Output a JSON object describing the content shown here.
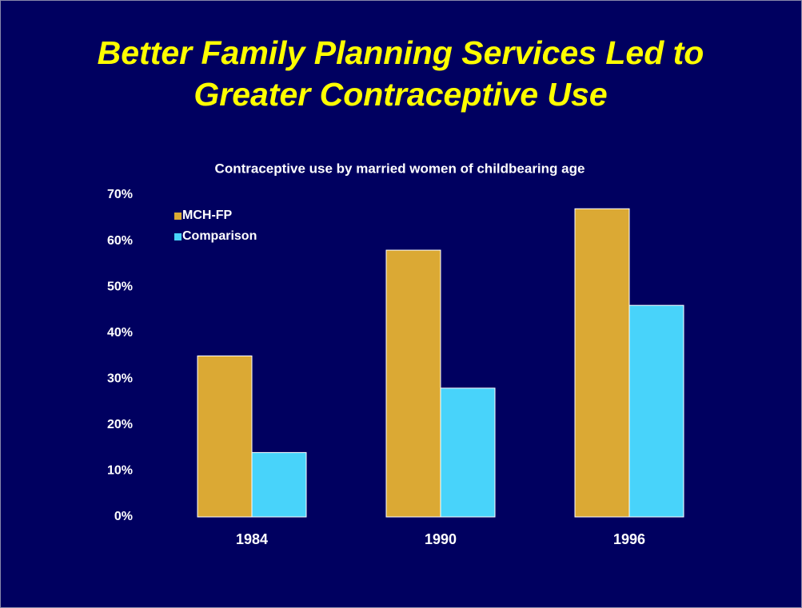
{
  "chart_data": {
    "type": "bar",
    "title": "Better Family Planning Services Led to Greater Contraceptive Use",
    "subtitle": "Contraceptive use by married women of childbearing age",
    "categories": [
      "1984",
      "1990",
      "1996"
    ],
    "series": [
      {
        "name": "MCH-FP",
        "color": "#dba934",
        "values": [
          35,
          58,
          67
        ]
      },
      {
        "name": "Comparison",
        "color": "#48d3fa",
        "values": [
          14,
          28,
          46
        ]
      }
    ],
    "ylim": [
      0,
      70
    ],
    "yticks": [
      {
        "value": 0,
        "label": "0%"
      },
      {
        "value": 10,
        "label": "10%"
      },
      {
        "value": 20,
        "label": "20%"
      },
      {
        "value": 30,
        "label": "30%"
      },
      {
        "value": 40,
        "label": "40%"
      },
      {
        "value": 50,
        "label": "50%"
      },
      {
        "value": 60,
        "label": "60%"
      },
      {
        "value": 70,
        "label": "70%"
      }
    ],
    "grid": false,
    "legend": "upper left"
  }
}
